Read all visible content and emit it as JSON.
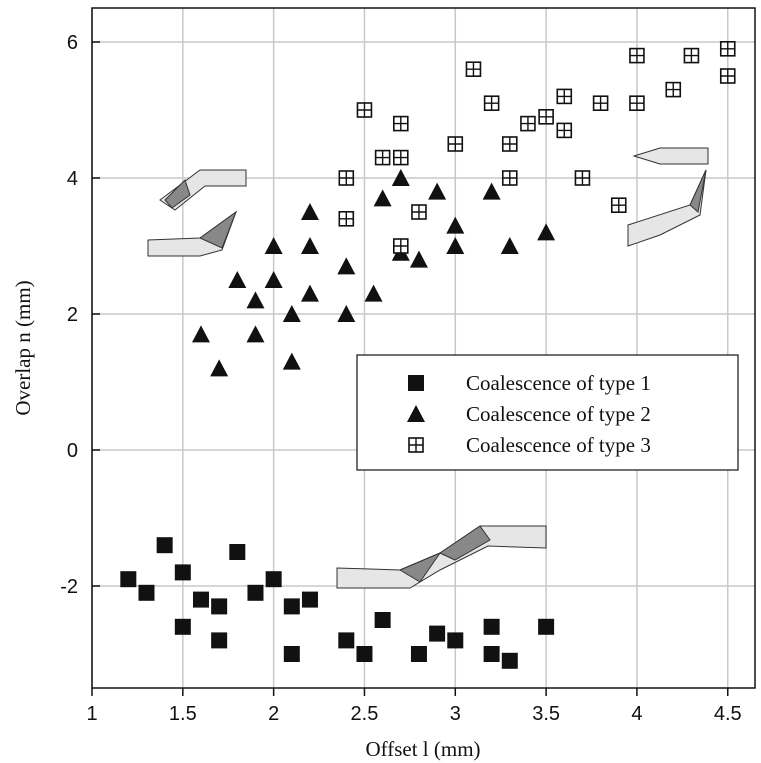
{
  "chart_data": {
    "type": "scatter",
    "x_label": "Offset l (mm)",
    "y_label": "Overlap n (mm)",
    "xlim": [
      1,
      4.65
    ],
    "ylim": [
      -3.5,
      6.5
    ],
    "xticks": [
      1,
      1.5,
      2,
      2.5,
      3,
      3.5,
      4,
      4.5
    ],
    "yticks": [
      -2,
      0,
      2,
      4,
      6
    ],
    "grid": true,
    "legend": "center right",
    "series": [
      {
        "name": "Coalescence of type 1",
        "color": "#111111",
        "marker": "square",
        "x": [
          1.2,
          1.3,
          1.4,
          1.5,
          1.5,
          1.6,
          1.7,
          1.7,
          1.8,
          1.9,
          2.0,
          2.1,
          2.1,
          2.2,
          2.4,
          2.5,
          2.6,
          2.8,
          2.9,
          3.0,
          3.2,
          3.2,
          3.3,
          3.5
        ],
        "values": [
          -1.9,
          -2.1,
          -1.4,
          -1.8,
          -2.6,
          -2.2,
          -2.3,
          -2.8,
          -1.5,
          -2.1,
          -1.9,
          -2.3,
          -3.0,
          -2.2,
          -2.8,
          -3.0,
          -2.5,
          -3.0,
          -2.7,
          -2.8,
          -2.6,
          -3.0,
          -3.1,
          -2.6
        ]
      },
      {
        "name": "Coalescence of type 2",
        "color": "#111111",
        "marker": "triangle",
        "x": [
          1.6,
          1.7,
          1.8,
          1.9,
          1.9,
          2.0,
          2.0,
          2.1,
          2.1,
          2.2,
          2.2,
          2.2,
          2.4,
          2.4,
          2.55,
          2.6,
          2.7,
          2.7,
          2.8,
          2.9,
          3.0,
          3.0,
          3.2,
          3.3,
          3.5
        ],
        "values": [
          1.7,
          1.2,
          2.5,
          2.2,
          1.7,
          3.0,
          2.5,
          2.0,
          1.3,
          3.5,
          3.0,
          2.3,
          2.7,
          2.0,
          2.3,
          3.7,
          4.0,
          2.9,
          2.8,
          3.8,
          3.3,
          3.0,
          3.8,
          3.0,
          3.2
        ]
      },
      {
        "name": "Coalescence of type 3",
        "color": "#111111",
        "marker": "crossed-square",
        "x": [
          3.1,
          2.5,
          2.7,
          2.6,
          2.7,
          2.4,
          2.4,
          2.8,
          2.7,
          3.0,
          3.2,
          3.3,
          3.3,
          3.4,
          3.5,
          3.6,
          3.6,
          3.7,
          3.8,
          3.9,
          4.0,
          4.0,
          4.2,
          4.3,
          4.5,
          4.5
        ],
        "values": [
          5.6,
          5.0,
          4.8,
          4.3,
          4.3,
          4.0,
          3.4,
          3.5,
          3.0,
          4.5,
          5.1,
          4.5,
          4.0,
          4.8,
          4.9,
          5.2,
          4.7,
          4.0,
          5.1,
          3.6,
          5.8,
          5.1,
          5.3,
          5.8,
          5.9,
          5.5
        ]
      }
    ]
  }
}
